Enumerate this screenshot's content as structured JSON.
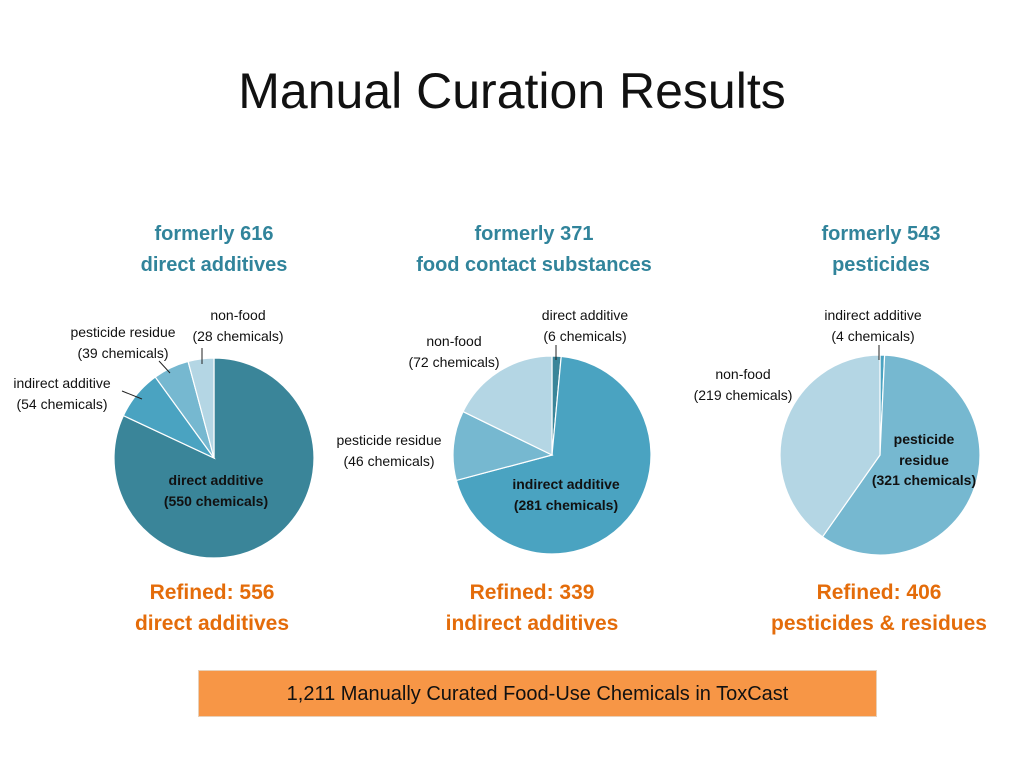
{
  "title": "Manual Curation Results",
  "banner": "1,211 Manually Curated Food-Use Chemicals in ToxCast",
  "chart_data": [
    {
      "type": "pie",
      "title_line1": "formerly 616",
      "title_line2": "direct additives",
      "refined_line1": "Refined: 556",
      "refined_line2": "direct additives",
      "slices": [
        {
          "label": "direct additive",
          "value_text": "(550 chemicals)",
          "value": 550,
          "color": "#3a8599"
        },
        {
          "label": "indirect additive",
          "value_text": "(54 chemicals)",
          "value": 54,
          "color": "#4aa3c1"
        },
        {
          "label": "pesticide residue",
          "value_text": "(39 chemicals)",
          "value": 39,
          "color": "#76b8d0"
        },
        {
          "label": "non-food",
          "value_text": "(28 chemicals)",
          "value": 28,
          "color": "#b4d6e4"
        }
      ]
    },
    {
      "type": "pie",
      "title_line1": "formerly 371",
      "title_line2": "food contact substances",
      "refined_line1": "Refined: 339",
      "refined_line2": "indirect additives",
      "slices": [
        {
          "label": "direct additive",
          "value_text": "(6 chemicals)",
          "value": 6,
          "color": "#3a8599"
        },
        {
          "label": "indirect additive",
          "value_text": "(281 chemicals)",
          "value": 281,
          "color": "#4aa3c1"
        },
        {
          "label": "pesticide residue",
          "value_text": "(46 chemicals)",
          "value": 46,
          "color": "#76b8d0"
        },
        {
          "label": "non-food",
          "value_text": "(72 chemicals)",
          "value": 72,
          "color": "#b4d6e4"
        }
      ]
    },
    {
      "type": "pie",
      "title_line1": "formerly 543",
      "title_line2": "pesticides",
      "refined_line1": "Refined: 406",
      "refined_line2": "pesticides & residues",
      "slices": [
        {
          "label": "indirect additive",
          "value_text": "(4 chemicals)",
          "value": 4,
          "color": "#4aa3c1"
        },
        {
          "label": "pesticide residue",
          "value_text": "(321 chemicals)",
          "value": 321,
          "color": "#76b8d0"
        },
        {
          "label": "non-food",
          "value_text": "(219 chemicals)",
          "value": 219,
          "color": "#b4d6e4"
        }
      ]
    }
  ]
}
